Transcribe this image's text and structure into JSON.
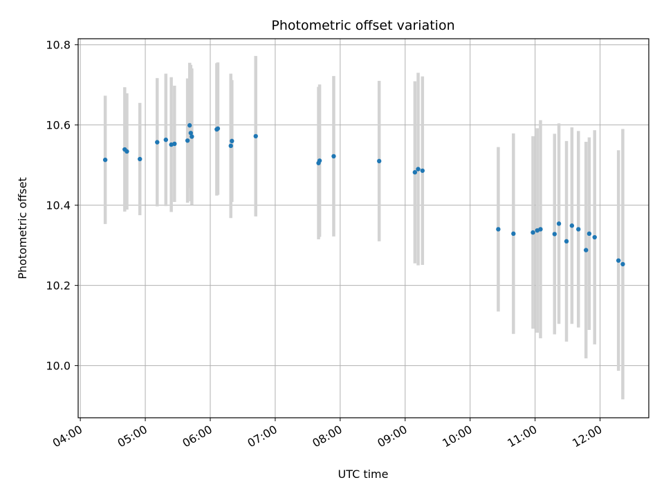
{
  "chart_data": {
    "type": "scatter",
    "title": "Photometric offset variation",
    "xlabel": "UTC time",
    "ylabel": "Photometric offset",
    "x_axis": "time (HH:MM, UTC)",
    "xlim": [
      "03:58",
      "12:45"
    ],
    "ylim": [
      9.87,
      10.815
    ],
    "xticks": [
      "04:00",
      "05:00",
      "06:00",
      "07:00",
      "08:00",
      "09:00",
      "10:00",
      "11:00",
      "12:00"
    ],
    "yticks": [
      10.0,
      10.2,
      10.4,
      10.6,
      10.8
    ],
    "grid": true,
    "point_color": "#1f77b4",
    "errorbar_color": "#d3d3d3",
    "points": [
      {
        "x": "04:23",
        "y": 10.513,
        "err": 0.16
      },
      {
        "x": "04:41",
        "y": 10.539,
        "err": 0.155
      },
      {
        "x": "04:43",
        "y": 10.534,
        "err": 0.145
      },
      {
        "x": "04:55",
        "y": 10.515,
        "err": 0.14
      },
      {
        "x": "05:11",
        "y": 10.557,
        "err": 0.16
      },
      {
        "x": "05:19",
        "y": 10.563,
        "err": 0.165
      },
      {
        "x": "05:24",
        "y": 10.551,
        "err": 0.168
      },
      {
        "x": "05:27",
        "y": 10.553,
        "err": 0.145
      },
      {
        "x": "05:39",
        "y": 10.561,
        "err": 0.155
      },
      {
        "x": "05:41",
        "y": 10.599,
        "err": 0.156
      },
      {
        "x": "05:42",
        "y": 10.58,
        "err": 0.17
      },
      {
        "x": "05:43",
        "y": 10.571,
        "err": 0.17
      },
      {
        "x": "06:06",
        "y": 10.589,
        "err": 0.165
      },
      {
        "x": "06:07",
        "y": 10.591,
        "err": 0.165
      },
      {
        "x": "06:19",
        "y": 10.548,
        "err": 0.18
      },
      {
        "x": "06:20",
        "y": 10.56,
        "err": 0.152
      },
      {
        "x": "06:42",
        "y": 10.572,
        "err": 0.2
      },
      {
        "x": "07:40",
        "y": 10.505,
        "err": 0.19
      },
      {
        "x": "07:41",
        "y": 10.511,
        "err": 0.19
      },
      {
        "x": "07:54",
        "y": 10.522,
        "err": 0.2
      },
      {
        "x": "08:36",
        "y": 10.51,
        "err": 0.2
      },
      {
        "x": "09:09",
        "y": 10.482,
        "err": 0.227
      },
      {
        "x": "09:12",
        "y": 10.49,
        "err": 0.24
      },
      {
        "x": "09:16",
        "y": 10.486,
        "err": 0.235
      },
      {
        "x": "10:26",
        "y": 10.34,
        "err": 0.205
      },
      {
        "x": "10:40",
        "y": 10.329,
        "err": 0.25
      },
      {
        "x": "10:58",
        "y": 10.332,
        "err": 0.24
      },
      {
        "x": "11:02",
        "y": 10.337,
        "err": 0.255
      },
      {
        "x": "11:05",
        "y": 10.34,
        "err": 0.272
      },
      {
        "x": "11:18",
        "y": 10.328,
        "err": 0.25
      },
      {
        "x": "11:22",
        "y": 10.354,
        "err": 0.25
      },
      {
        "x": "11:29",
        "y": 10.31,
        "err": 0.25
      },
      {
        "x": "11:34",
        "y": 10.349,
        "err": 0.245
      },
      {
        "x": "11:40",
        "y": 10.34,
        "err": 0.245
      },
      {
        "x": "11:47",
        "y": 10.288,
        "err": 0.27
      },
      {
        "x": "11:50",
        "y": 10.329,
        "err": 0.24
      },
      {
        "x": "11:55",
        "y": 10.32,
        "err": 0.267
      },
      {
        "x": "12:17",
        "y": 10.262,
        "err": 0.275
      },
      {
        "x": "12:21",
        "y": 10.253,
        "err": 0.337
      }
    ]
  }
}
